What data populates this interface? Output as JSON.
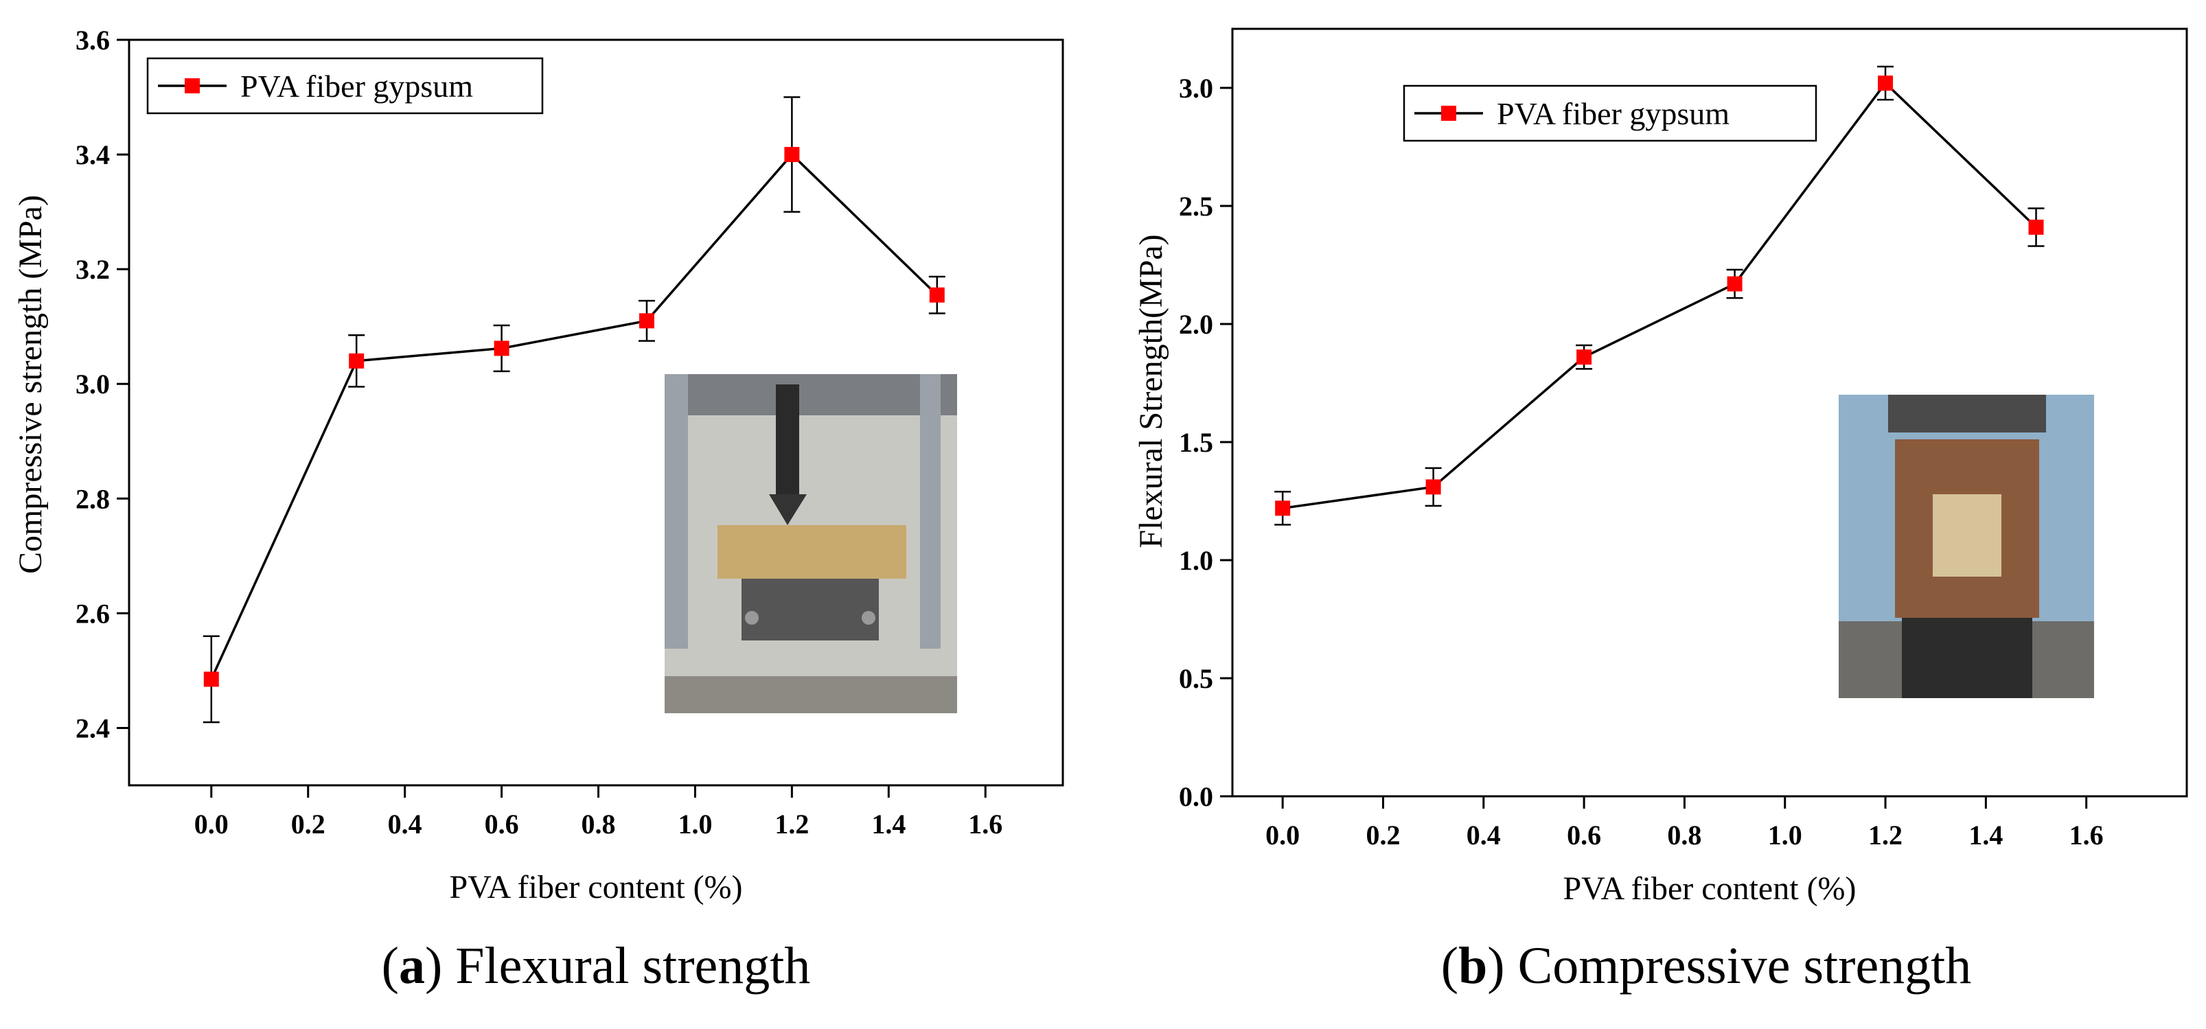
{
  "colors": {
    "line": "#000000",
    "marker": "#ff0000",
    "axis": "#000000"
  },
  "panels": [
    {
      "prefix": "(",
      "letter": "a",
      "suffix": ") Flexural strength"
    },
    {
      "prefix": "(",
      "letter": "b",
      "suffix": ") Compressive strength"
    }
  ],
  "chart_data": [
    {
      "type": "line",
      "title": "",
      "xlabel": "PVA fiber content (%)",
      "ylabel": "Compressive strength (MPa)",
      "xlim": [
        -0.17,
        1.76
      ],
      "ylim": [
        2.3,
        3.6
      ],
      "xticks": [
        0.0,
        0.2,
        0.4,
        0.6,
        0.8,
        1.0,
        1.2,
        1.4,
        1.6
      ],
      "yticks": [
        2.4,
        2.6,
        2.8,
        3.0,
        3.2,
        3.4,
        3.6
      ],
      "tick_decimals": 1,
      "legend": {
        "position": "top-left"
      },
      "series": [
        {
          "name": "PVA fiber gypsum",
          "x": [
            0.0,
            0.3,
            0.6,
            0.9,
            1.2,
            1.5
          ],
          "values": [
            2.485,
            3.04,
            3.062,
            3.11,
            3.4,
            3.155
          ],
          "error": [
            0.075,
            0.045,
            0.04,
            0.035,
            0.1,
            0.032
          ]
        }
      ],
      "inset": {
        "description": "photo of flexural test fixture with gypsum specimen"
      }
    },
    {
      "type": "line",
      "title": "",
      "xlabel": "PVA fiber content (%)",
      "ylabel": "Flexural Strength(MPa)",
      "xlim": [
        -0.1,
        1.8
      ],
      "ylim": [
        0.0,
        3.25
      ],
      "xticks": [
        0.0,
        0.2,
        0.4,
        0.6,
        0.8,
        1.0,
        1.2,
        1.4,
        1.6
      ],
      "yticks": [
        0.0,
        0.5,
        1.0,
        1.5,
        2.0,
        2.5,
        3.0
      ],
      "tick_decimals": 1,
      "legend": {
        "position": "top-center"
      },
      "series": [
        {
          "name": "PVA fiber gypsum",
          "x": [
            0.0,
            0.3,
            0.6,
            0.9,
            1.2,
            1.5
          ],
          "values": [
            1.22,
            1.31,
            1.86,
            2.17,
            3.02,
            2.41
          ],
          "error": [
            0.07,
            0.08,
            0.05,
            0.06,
            0.07,
            0.08
          ]
        }
      ],
      "inset": {
        "description": "photo of compression test fixture with gypsum cube"
      }
    }
  ]
}
